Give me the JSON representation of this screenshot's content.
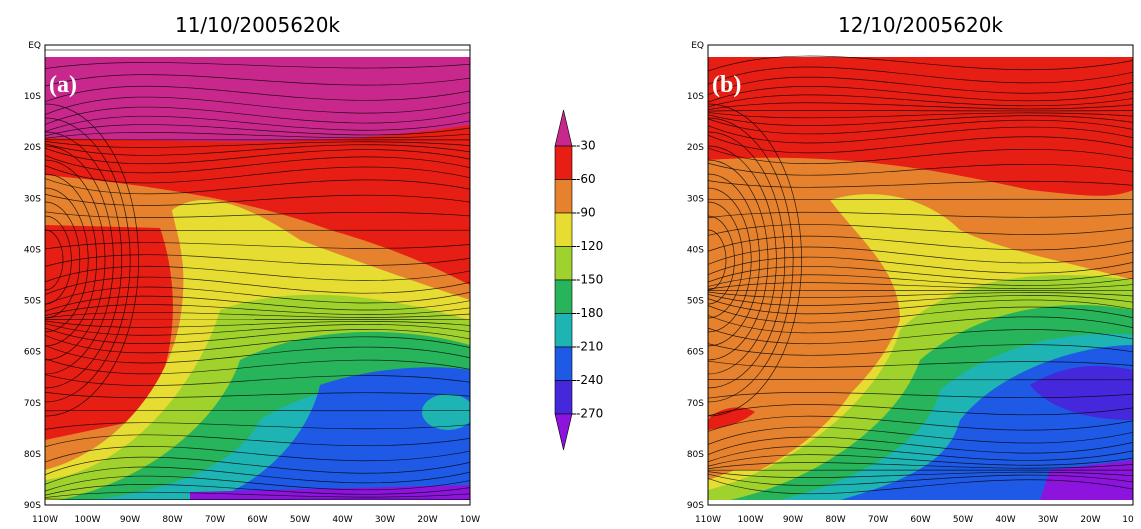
{
  "panels": [
    {
      "title": "11/10/2005620k",
      "label": "(a)",
      "lat_ticks": [
        "EQ",
        "10S",
        "20S",
        "30S",
        "40S",
        "50S",
        "60S",
        "70S",
        "80S",
        "90S"
      ],
      "lon_ticks": [
        "110W",
        "100W",
        "90W",
        "80W",
        "70W",
        "60W",
        "50W",
        "40W",
        "30W",
        "20W",
        "10W"
      ]
    },
    {
      "title": "12/10/2005620k",
      "label": "(b)",
      "lat_ticks": [
        "EQ",
        "10S",
        "20S",
        "30S",
        "40S",
        "50S",
        "60S",
        "70S",
        "80S",
        "90S"
      ],
      "lon_ticks": [
        "110W",
        "100W",
        "90W",
        "80W",
        "70W",
        "60W",
        "50W",
        "40W",
        "30W",
        "20W",
        "10"
      ]
    }
  ],
  "colorbar": {
    "levels": [
      -30,
      -60,
      -90,
      -120,
      -150,
      -180,
      -210,
      -240,
      -270
    ],
    "colors": [
      "#c8288c",
      "#e61e14",
      "#e6822d",
      "#e6dc32",
      "#a0d22d",
      "#28b45a",
      "#1eb4b4",
      "#1e5ae6",
      "#4628dc",
      "#8c14dc"
    ]
  }
}
